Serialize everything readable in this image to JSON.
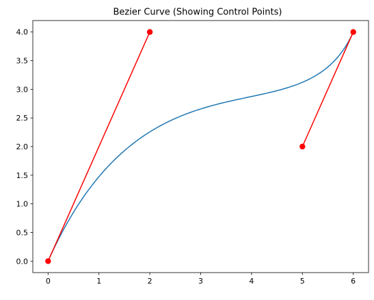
{
  "chart_data": {
    "type": "line",
    "title": "Bezier Curve (Showing Control Points)",
    "xlabel": "",
    "ylabel": "",
    "xlim": [
      -0.3,
      6.3
    ],
    "ylim": [
      -0.2,
      4.2
    ],
    "xticks": [
      0,
      1,
      2,
      3,
      4,
      5,
      6
    ],
    "xtick_labels": [
      "0",
      "1",
      "2",
      "3",
      "4",
      "5",
      "6"
    ],
    "yticks": [
      0.0,
      0.5,
      1.0,
      1.5,
      2.0,
      2.5,
      3.0,
      3.5,
      4.0
    ],
    "ytick_labels": [
      "0.0",
      "0.5",
      "1.0",
      "1.5",
      "2.0",
      "2.5",
      "3.0",
      "3.5",
      "4.0"
    ],
    "grid": false,
    "series": [
      {
        "kind": "bezier-curve",
        "color": "#1f77b4",
        "control_points": [
          [
            0,
            0
          ],
          [
            2,
            4
          ],
          [
            5,
            2
          ],
          [
            6,
            4
          ]
        ]
      },
      {
        "kind": "control-handle",
        "color": "#ff0000",
        "x": [
          0,
          2
        ],
        "y": [
          0,
          4
        ]
      },
      {
        "kind": "control-handle",
        "color": "#ff0000",
        "x": [
          5,
          6
        ],
        "y": [
          2,
          4
        ]
      }
    ],
    "control_points": {
      "color": "#ff0000",
      "x": [
        0,
        2,
        5,
        6
      ],
      "y": [
        0,
        4,
        2,
        4
      ]
    }
  }
}
